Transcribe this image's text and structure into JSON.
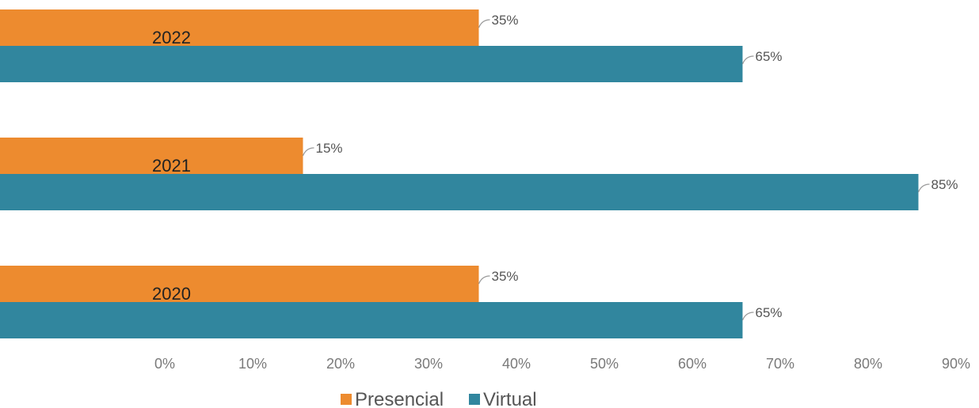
{
  "chart_data": {
    "type": "bar",
    "orientation": "horizontal",
    "categories": [
      "2022",
      "2021",
      "2020"
    ],
    "series": [
      {
        "name": "Presencial",
        "color": "#ED8B2F",
        "values": [
          35,
          15,
          35
        ]
      },
      {
        "name": "Virtual",
        "color": "#31869E",
        "values": [
          65,
          85,
          65
        ]
      }
    ],
    "data_labels": {
      "Presencial": [
        "35%",
        "15%",
        "35%"
      ],
      "Virtual": [
        "65%",
        "85%",
        "65%"
      ]
    },
    "x_ticks": [
      "0%",
      "10%",
      "20%",
      "30%",
      "40%",
      "50%",
      "60%",
      "70%",
      "80%",
      "90%"
    ],
    "xlim": [
      0,
      90
    ],
    "grid": false,
    "legend": {
      "position": "bottom",
      "entries": [
        "Presencial",
        "Virtual"
      ]
    }
  }
}
